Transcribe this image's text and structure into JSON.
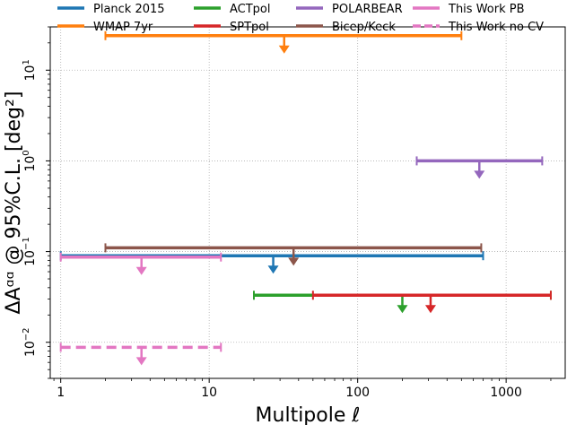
{
  "chart_data": {
    "type": "errorbar-upper-limits",
    "xlabel": "Multipole ℓ",
    "ylabel": "ΔAᵅᵅ @ 95%C.L. [deg²]",
    "xscale": "log",
    "yscale": "log",
    "xlim": [
      0.85,
      2500
    ],
    "ylim": [
      0.004,
      30
    ],
    "grid": true,
    "legend_position": "top",
    "x_ticks": [
      {
        "value": 1,
        "label": "1"
      },
      {
        "value": 10,
        "label": "10"
      },
      {
        "value": 100,
        "label": "100"
      },
      {
        "value": 1000,
        "label": "1000"
      }
    ],
    "y_ticks": [
      {
        "value": 0.01,
        "base": "10",
        "exp": "−2"
      },
      {
        "value": 0.1,
        "base": "10",
        "exp": "−1"
      },
      {
        "value": 1,
        "base": "10",
        "exp": "0"
      },
      {
        "value": 10,
        "base": "10",
        "exp": "1"
      }
    ],
    "series": [
      {
        "name": "Planck 2015",
        "color": "#1f77b4",
        "style": "solid",
        "l_min": 1,
        "l_max": 700,
        "limit": 0.09,
        "arrow_l": 27
      },
      {
        "name": "WMAP 7yr",
        "color": "#ff7f0e",
        "style": "solid",
        "l_min": 2,
        "l_max": 500,
        "limit": 24,
        "arrow_l": 32
      },
      {
        "name": "ACTpol",
        "color": "#2ca02c",
        "style": "solid",
        "l_min": 20,
        "l_max": 2000,
        "limit": 0.033,
        "arrow_l": 200
      },
      {
        "name": "SPTpol",
        "color": "#d62728",
        "style": "solid",
        "l_min": 50,
        "l_max": 2000,
        "limit": 0.033,
        "arrow_l": 310
      },
      {
        "name": "POLARBEAR",
        "color": "#9467bd",
        "style": "solid",
        "l_min": 250,
        "l_max": 1750,
        "limit": 1.0,
        "arrow_l": 660
      },
      {
        "name": "Bicep/Keck",
        "color": "#8c564b",
        "style": "solid",
        "l_min": 2,
        "l_max": 680,
        "limit": 0.11,
        "arrow_l": 37
      },
      {
        "name": "This Work PB",
        "color": "#e377c2",
        "style": "solid",
        "l_min": 1,
        "l_max": 12,
        "limit": 0.087,
        "arrow_l": 3.5
      },
      {
        "name": "This Work no CV",
        "color": "#e377c2",
        "style": "dashed",
        "l_min": 1,
        "l_max": 12,
        "limit": 0.0088,
        "arrow_l": 3.5
      }
    ]
  }
}
